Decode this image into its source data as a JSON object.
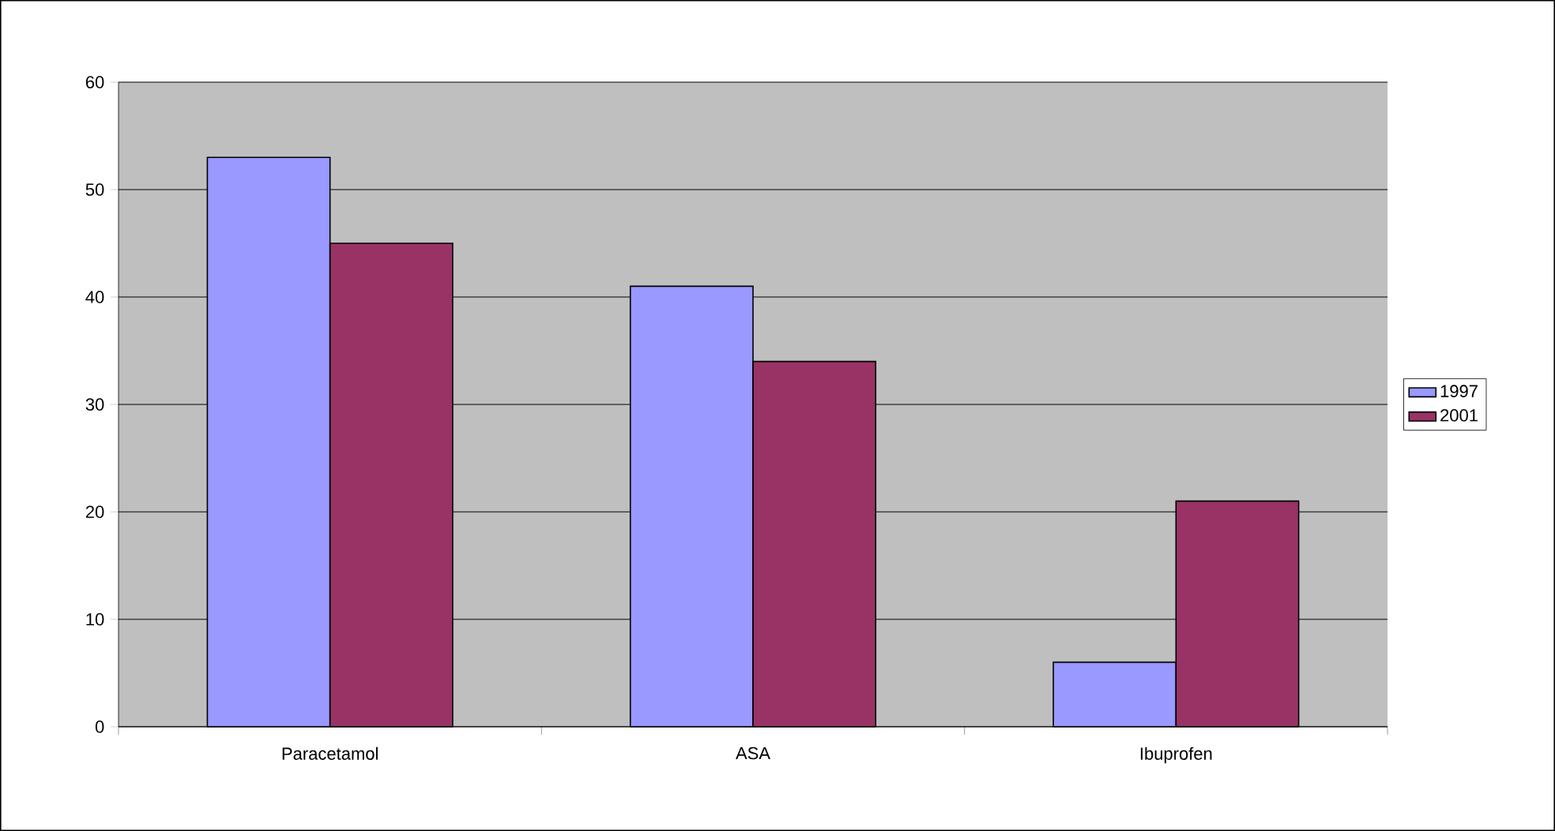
{
  "chart_data": {
    "type": "bar",
    "categories": [
      "Paracetamol",
      "ASA",
      "Ibuprofen"
    ],
    "series": [
      {
        "name": "1997",
        "color": "#9999ff",
        "values": [
          53,
          41,
          6
        ]
      },
      {
        "name": "2001",
        "color": "#993366",
        "values": [
          45,
          34,
          21
        ]
      }
    ],
    "ylim": [
      0,
      60
    ],
    "yticks": [
      0,
      10,
      20,
      30,
      40,
      50,
      60
    ],
    "grid": "y",
    "legend": "right"
  }
}
